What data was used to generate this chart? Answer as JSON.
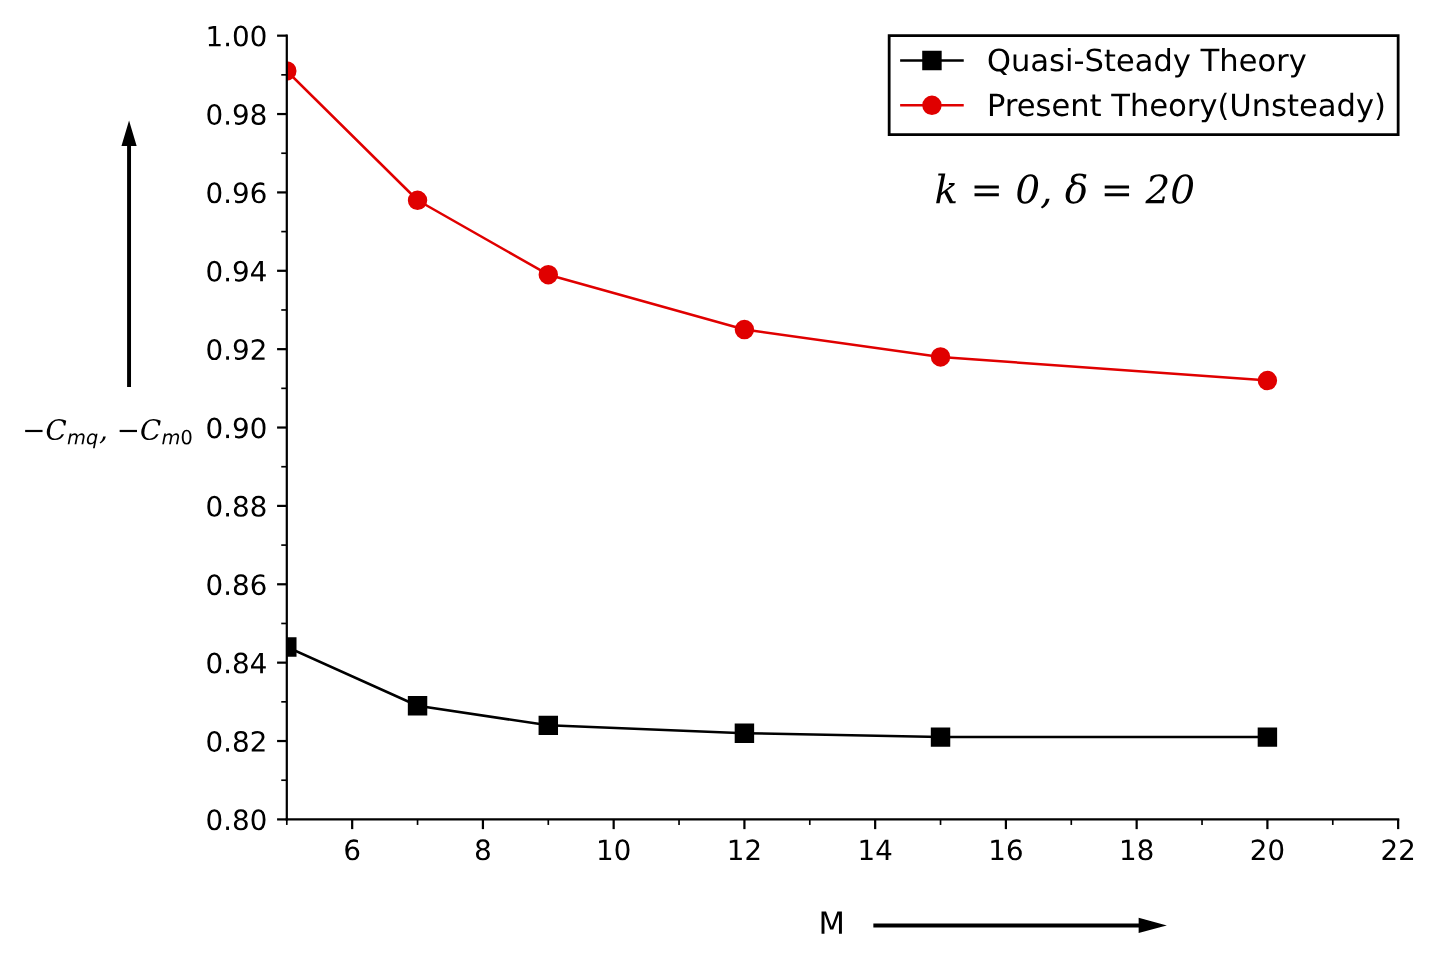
{
  "chart_data": {
    "type": "line",
    "xlabel": "M",
    "ylabel": "−C$_{mq}$, −C$_{m0}$",
    "annotations": [
      "k = 0, δ = 20"
    ],
    "x": [
      5,
      7,
      9,
      12,
      15,
      20
    ],
    "series": [
      {
        "name": "Quasi-Steady Theory",
        "color": "#000000",
        "marker": "square",
        "values": [
          0.844,
          0.829,
          0.824,
          0.822,
          0.821,
          0.821
        ]
      },
      {
        "name": "Present Theory(Unsteady)",
        "color": "#e00000",
        "marker": "circle",
        "values": [
          0.991,
          0.958,
          0.939,
          0.925,
          0.918,
          0.912
        ]
      }
    ],
    "xlim": [
      5,
      22
    ],
    "xticks": [
      6,
      8,
      10,
      12,
      14,
      16,
      18,
      20,
      22
    ],
    "ylim": [
      0.8,
      1.0
    ],
    "yticks": [
      {
        "value": 0.8,
        "label": "0.80"
      },
      {
        "value": 0.82,
        "label": "0.82"
      },
      {
        "value": 0.84,
        "label": "0.84"
      },
      {
        "value": 0.86,
        "label": "0.86"
      },
      {
        "value": 0.88,
        "label": "0.88"
      },
      {
        "value": 0.9,
        "label": "0.90"
      },
      {
        "value": 0.92,
        "label": "0.92"
      },
      {
        "value": 0.94,
        "label": "0.94"
      },
      {
        "value": 0.96,
        "label": "0.96"
      },
      {
        "value": 0.98,
        "label": "0.98"
      },
      {
        "value": 1.0,
        "label": "1.00"
      }
    ],
    "grid": false,
    "legend": "top right",
    "line_style": "solid"
  }
}
